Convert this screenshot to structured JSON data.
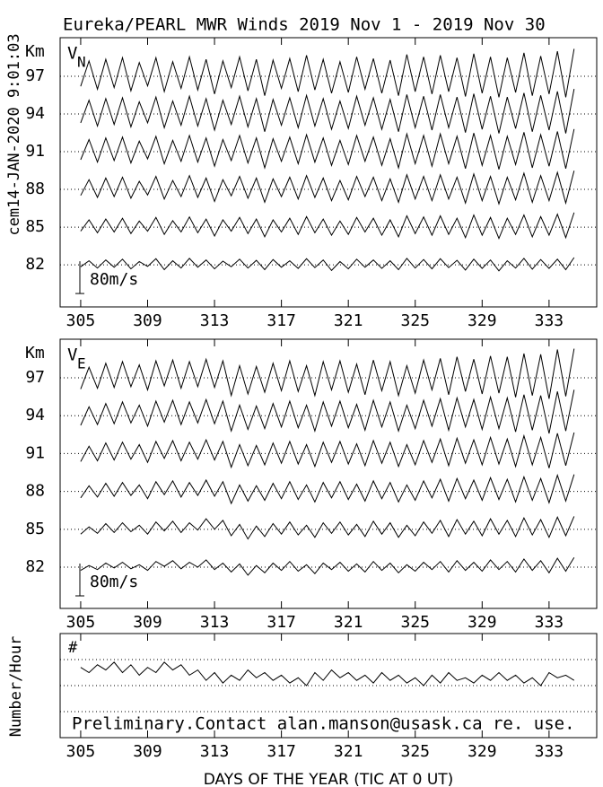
{
  "chart_data": [
    {
      "type": "trace",
      "title": "Eureka/PEARL MWR Winds 2019 Nov  1 - 2019 Nov 30",
      "stamp": "cem14-JAN-2020  9:01:03",
      "ylabel": "Km",
      "panel_label": "V",
      "panel_label_sub": "N",
      "scale_bar": {
        "label": "80m/s",
        "value": 80
      },
      "xlim": [
        303.77,
        335.85
      ],
      "xticks": [
        305,
        309,
        313,
        317,
        321,
        325,
        329,
        333
      ],
      "ylim": [
        78.65,
        100.07
      ],
      "yticks": [
        82,
        85,
        88,
        91,
        94,
        97
      ],
      "grid": true,
      "x": [
        305,
        305.5,
        306,
        306.5,
        307,
        307.5,
        308,
        308.5,
        309,
        309.5,
        310,
        310.5,
        311,
        311.5,
        312,
        312.5,
        313,
        313.5,
        314,
        314.5,
        315,
        315.5,
        316,
        316.5,
        317,
        317.5,
        318,
        318.5,
        319,
        319.5,
        320,
        320.5,
        321,
        321.5,
        322,
        322.5,
        323,
        323.5,
        324,
        324.5,
        325,
        325.5,
        326,
        326.5,
        327,
        327.5,
        328,
        328.5,
        329,
        329.5,
        330,
        330.5,
        331,
        331.5,
        332,
        332.5,
        333,
        333.5,
        334,
        334.5
      ],
      "series": [
        {
          "color": "#000000",
          "values": [
            -5,
            10,
            -8,
            12,
            -6,
            14,
            -10,
            8,
            -4,
            15,
            -12,
            10,
            -8,
            16,
            -6,
            12,
            -10,
            9,
            -5,
            14,
            -8,
            11,
            -12,
            13,
            -6,
            10,
            -9,
            15,
            -7,
            12,
            -14,
            8,
            -10,
            14,
            -6,
            12,
            -9,
            10,
            -12,
            16,
            -8,
            13,
            -10,
            15,
            -7,
            11,
            -13,
            14,
            -9,
            12,
            -15,
            10,
            -8,
            16,
            -11,
            13,
            -9,
            14,
            -12,
            18
          ]
        },
        {
          "color": "#000000",
          "values": [
            -10,
            18,
            -14,
            20,
            -12,
            22,
            -16,
            15,
            -10,
            24,
            -18,
            16,
            -12,
            25,
            -14,
            20,
            -22,
            18,
            -10,
            24,
            -16,
            20,
            -24,
            18,
            -12,
            22,
            -18,
            26,
            -14,
            20,
            -20,
            15,
            -18,
            24,
            -12,
            22,
            -20,
            18,
            -24,
            28,
            -16,
            25,
            -20,
            28,
            -18,
            22,
            -26,
            30,
            -20,
            24,
            -28,
            22,
            -18,
            30,
            -24,
            26,
            -20,
            32,
            -26,
            36
          ]
        },
        {
          "color": "#000000",
          "values": [
            -15,
            24,
            -20,
            28,
            -18,
            30,
            -22,
            20,
            -14,
            32,
            -24,
            22,
            -18,
            34,
            -20,
            28,
            -30,
            24,
            -16,
            32,
            -22,
            28,
            -32,
            26,
            -18,
            30,
            -24,
            34,
            -20,
            28,
            -28,
            22,
            -26,
            32,
            -18,
            30,
            -28,
            26,
            -32,
            36,
            -24,
            32,
            -28,
            36,
            -24,
            30,
            -34,
            38,
            -28,
            32,
            -36,
            30,
            -26,
            40,
            -32,
            34,
            -28,
            42,
            -34,
            46
          ]
        },
        {
          "color": "#000000",
          "values": [
            -20,
            30,
            -26,
            34,
            -22,
            36,
            -28,
            26,
            -18,
            38,
            -30,
            28,
            -24,
            40,
            -26,
            34,
            -36,
            30,
            -22,
            40,
            -28,
            34,
            -40,
            32,
            -24,
            36,
            -30,
            42,
            -26,
            34,
            -34,
            28,
            -32,
            40,
            -24,
            36,
            -34,
            32,
            -40,
            44,
            -30,
            40,
            -36,
            44,
            -30,
            38,
            -42,
            46,
            -34,
            40,
            -44,
            38,
            -32,
            48,
            -40,
            42,
            -36,
            50,
            -42,
            56
          ]
        },
        {
          "color": "#000000",
          "values": [
            -22,
            34,
            -30,
            38,
            -26,
            40,
            -32,
            30,
            -22,
            42,
            -34,
            32,
            -28,
            44,
            -30,
            38,
            -40,
            34,
            -26,
            44,
            -32,
            38,
            -44,
            36,
            -28,
            40,
            -34,
            46,
            -30,
            38,
            -38,
            32,
            -36,
            44,
            -28,
            40,
            -38,
            36,
            -44,
            48,
            -34,
            44,
            -40,
            48,
            -34,
            42,
            -46,
            50,
            -38,
            44,
            -48,
            42,
            -36,
            52,
            -44,
            46,
            -40,
            56,
            -48,
            62
          ]
        },
        {
          "color": "#000000",
          "values": [
            -25,
            38,
            -32,
            42,
            -28,
            46,
            -36,
            34,
            -24,
            46,
            -38,
            36,
            -30,
            48,
            -34,
            42,
            -44,
            38,
            -28,
            48,
            -36,
            42,
            -48,
            40,
            -30,
            44,
            -38,
            52,
            -34,
            42,
            -42,
            36,
            -40,
            48,
            -32,
            44,
            -42,
            40,
            -48,
            54,
            -38,
            48,
            -44,
            52,
            -38,
            46,
            -50,
            56,
            -42,
            48,
            -52,
            46,
            -40,
            58,
            -48,
            50,
            -44,
            62,
            -52,
            68
          ]
        }
      ]
    },
    {
      "type": "trace",
      "ylabel": "Km",
      "panel_label": "V",
      "panel_label_sub": "E",
      "scale_bar": {
        "label": "80m/s",
        "value": 80
      },
      "xlim": [
        303.77,
        335.85
      ],
      "xticks": [
        305,
        309,
        313,
        317,
        321,
        325,
        329,
        333
      ],
      "ylim": [
        78.73,
        100.06
      ],
      "yticks": [
        82,
        85,
        88,
        91,
        94,
        97
      ],
      "grid": true,
      "x": [
        305,
        305.5,
        306,
        306.5,
        307,
        307.5,
        308,
        308.5,
        309,
        309.5,
        310,
        310.5,
        311,
        311.5,
        312,
        312.5,
        313,
        313.5,
        314,
        314.5,
        315,
        315.5,
        316,
        316.5,
        317,
        317.5,
        318,
        318.5,
        319,
        319.5,
        320,
        320.5,
        321,
        321.5,
        322,
        322.5,
        323,
        323.5,
        324,
        324.5,
        325,
        325.5,
        326,
        326.5,
        327,
        327.5,
        328,
        328.5,
        329,
        329.5,
        330,
        330.5,
        331,
        331.5,
        332,
        332.5,
        333,
        333.5,
        334,
        334.5
      ],
      "series": [
        {
          "color": "#000000",
          "values": [
            -8,
            4,
            -6,
            10,
            -2,
            12,
            -4,
            6,
            -8,
            14,
            2,
            16,
            -4,
            12,
            0,
            18,
            -6,
            10,
            -12,
            8,
            -20,
            4,
            -14,
            10,
            -8,
            14,
            -10,
            6,
            -16,
            10,
            -6,
            12,
            -10,
            8,
            -12,
            14,
            -8,
            10,
            -14,
            6,
            -10,
            12,
            -6,
            14,
            -12,
            16,
            -8,
            12,
            -10,
            18,
            -6,
            14,
            -12,
            20,
            -8,
            16,
            -14,
            22,
            -10,
            24
          ]
        },
        {
          "color": "#000000",
          "values": [
            -12,
            6,
            -10,
            14,
            -8,
            16,
            -6,
            10,
            -12,
            18,
            -4,
            20,
            -8,
            16,
            -2,
            26,
            0,
            22,
            -16,
            12,
            -24,
            8,
            -18,
            14,
            -12,
            18,
            -14,
            10,
            -20,
            16,
            -10,
            18,
            -14,
            12,
            -18,
            20,
            -12,
            16,
            -20,
            10,
            -16,
            18,
            -10,
            22,
            -18,
            24,
            -12,
            20,
            -16,
            26,
            -12,
            22,
            -18,
            28,
            -14,
            24,
            -20,
            30,
            -16,
            32
          ]
        },
        {
          "color": "#000000",
          "values": [
            -16,
            14,
            -14,
            20,
            -12,
            22,
            -10,
            16,
            -18,
            24,
            -8,
            26,
            -14,
            22,
            -10,
            28,
            -12,
            24,
            -30,
            16,
            -24,
            14,
            -22,
            20,
            -18,
            24,
            -20,
            16,
            -26,
            22,
            -16,
            24,
            -20,
            18,
            -24,
            26,
            -18,
            22,
            -26,
            16,
            -22,
            26,
            -16,
            30,
            -24,
            32,
            -18,
            28,
            -22,
            34,
            -20,
            30,
            -26,
            36,
            -22,
            32,
            -28,
            40,
            -24,
            42
          ]
        },
        {
          "color": "#000000",
          "values": [
            -20,
            18,
            -18,
            26,
            -16,
            28,
            -14,
            22,
            -22,
            30,
            -12,
            32,
            -18,
            28,
            -14,
            34,
            -16,
            30,
            -34,
            22,
            -30,
            20,
            -28,
            26,
            -24,
            30,
            -26,
            22,
            -32,
            28,
            -22,
            30,
            -26,
            24,
            -30,
            32,
            -24,
            28,
            -32,
            22,
            -28,
            32,
            -22,
            36,
            -30,
            38,
            -24,
            34,
            -28,
            40,
            -26,
            36,
            -32,
            44,
            -28,
            40,
            -36,
            50,
            -30,
            52
          ]
        },
        {
          "color": "#000000",
          "values": [
            -24,
            22,
            -22,
            30,
            -20,
            34,
            -18,
            26,
            -26,
            36,
            -16,
            38,
            -22,
            34,
            -18,
            40,
            -20,
            36,
            -38,
            26,
            -34,
            24,
            -32,
            30,
            -28,
            36,
            -30,
            26,
            -38,
            34,
            -26,
            36,
            -30,
            28,
            -36,
            38,
            -28,
            34,
            -38,
            26,
            -32,
            38,
            -26,
            42,
            -36,
            44,
            -28,
            40,
            -34,
            46,
            -32,
            44,
            -40,
            52,
            -36,
            50,
            -44,
            60,
            -38,
            64
          ]
        },
        {
          "color": "#000000",
          "values": [
            -28,
            26,
            -26,
            36,
            -24,
            40,
            -22,
            32,
            -30,
            42,
            -20,
            44,
            -26,
            40,
            -22,
            46,
            -24,
            42,
            -44,
            30,
            -40,
            28,
            -36,
            36,
            -32,
            42,
            -34,
            30,
            -44,
            40,
            -30,
            42,
            -36,
            34,
            -42,
            44,
            -32,
            40,
            -44,
            30,
            -38,
            44,
            -30,
            48,
            -42,
            52,
            -34,
            46,
            -40,
            54,
            -38,
            52,
            -48,
            60,
            -44,
            58,
            -52,
            70,
            -46,
            72
          ]
        }
      ]
    },
    {
      "type": "line",
      "ylabel": "Number/Hour",
      "xlabel": "DAYS OF THE YEAR (TIC AT 0 UT)",
      "panel_label": "#",
      "annotation": "Preliminary.Contact alan.manson@usask.ca re. use.",
      "xlim": [
        303.77,
        335.85
      ],
      "xticks": [
        305,
        309,
        313,
        317,
        321,
        325,
        329,
        333
      ],
      "ylim": [
        0,
        40
      ],
      "ygrid": [
        10,
        20,
        30
      ],
      "x": [
        305,
        305.5,
        306,
        306.5,
        307,
        307.5,
        308,
        308.5,
        309,
        309.5,
        310,
        310.5,
        311,
        311.5,
        312,
        312.5,
        313,
        313.5,
        314,
        314.5,
        315,
        315.5,
        316,
        316.5,
        317,
        317.5,
        318,
        318.5,
        319,
        319.5,
        320,
        320.5,
        321,
        321.5,
        322,
        322.5,
        323,
        323.5,
        324,
        324.5,
        325,
        325.5,
        326,
        326.5,
        327,
        327.5,
        328,
        328.5,
        329,
        329.5,
        330,
        330.5,
        331,
        331.5,
        332,
        332.5,
        333,
        333.5,
        334,
        334.5
      ],
      "series": [
        {
          "color": "#000000",
          "values": [
            27,
            25,
            28,
            26,
            29,
            25,
            28,
            24,
            27,
            25,
            29,
            26,
            28,
            24,
            26,
            22,
            25,
            21,
            24,
            22,
            26,
            23,
            25,
            22,
            24,
            21,
            23,
            20,
            25,
            22,
            26,
            23,
            25,
            22,
            24,
            21,
            25,
            22,
            24,
            21,
            23,
            20,
            24,
            21,
            25,
            22,
            23,
            21,
            24,
            22,
            25,
            22,
            24,
            21,
            23,
            20,
            25,
            23,
            24,
            22
          ]
        }
      ]
    }
  ]
}
